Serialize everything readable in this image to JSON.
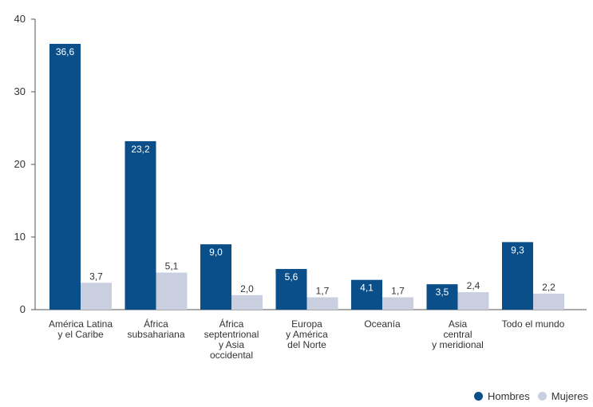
{
  "chart_data": {
    "type": "bar",
    "categories": [
      [
        "América Latina",
        "y el Caribe"
      ],
      [
        "África",
        "subsahariana"
      ],
      [
        "África",
        "septentrional",
        "y Asia",
        "occidental"
      ],
      [
        "Europa",
        "y América",
        "del Norte"
      ],
      [
        "Oceanía"
      ],
      [
        "Asia",
        "central",
        "y meridional"
      ],
      [
        "Todo el mundo"
      ]
    ],
    "series": [
      {
        "name": "Hombres",
        "values": [
          36.6,
          23.2,
          9.0,
          5.6,
          4.1,
          3.5,
          9.3
        ],
        "labels": [
          "36,6",
          "23,2",
          "9,0",
          "5,6",
          "4,1",
          "3,5",
          "9,3"
        ],
        "color": "#0b4f8a"
      },
      {
        "name": "Mujeres",
        "values": [
          3.7,
          5.1,
          2.0,
          1.7,
          1.7,
          2.4,
          2.2
        ],
        "labels": [
          "3,7",
          "5,1",
          "2,0",
          "1,7",
          "1,7",
          "2,4",
          "2,2"
        ],
        "color": "#c9cfdf"
      }
    ],
    "yticks": [
      "0",
      "10",
      "20",
      "30",
      "40"
    ],
    "ylim": [
      0,
      40
    ],
    "grid": false,
    "legend_position": "bottom-right"
  }
}
